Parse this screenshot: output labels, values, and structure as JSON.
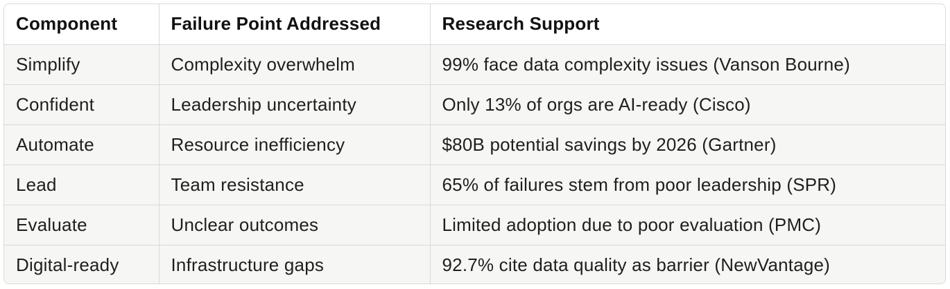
{
  "table": {
    "headers": [
      "Component",
      "Failure Point Addressed",
      "Research Support"
    ],
    "rows": [
      [
        "Simplify",
        "Complexity overwhelm",
        "99% face data complexity issues (Vanson Bourne)"
      ],
      [
        "Confident",
        "Leadership uncertainty",
        "Only 13% of orgs are AI-ready (Cisco)"
      ],
      [
        "Automate",
        "Resource inefficiency",
        "$80B potential savings by 2026 (Gartner)"
      ],
      [
        "Lead",
        "Team resistance",
        "65% of failures stem from poor leadership (SPR)"
      ],
      [
        "Evaluate",
        "Unclear outcomes",
        "Limited adoption due to poor evaluation (PMC)"
      ],
      [
        "Digital-ready",
        "Infrastructure gaps",
        "92.7% cite data quality as barrier (NewVantage)"
      ]
    ]
  }
}
